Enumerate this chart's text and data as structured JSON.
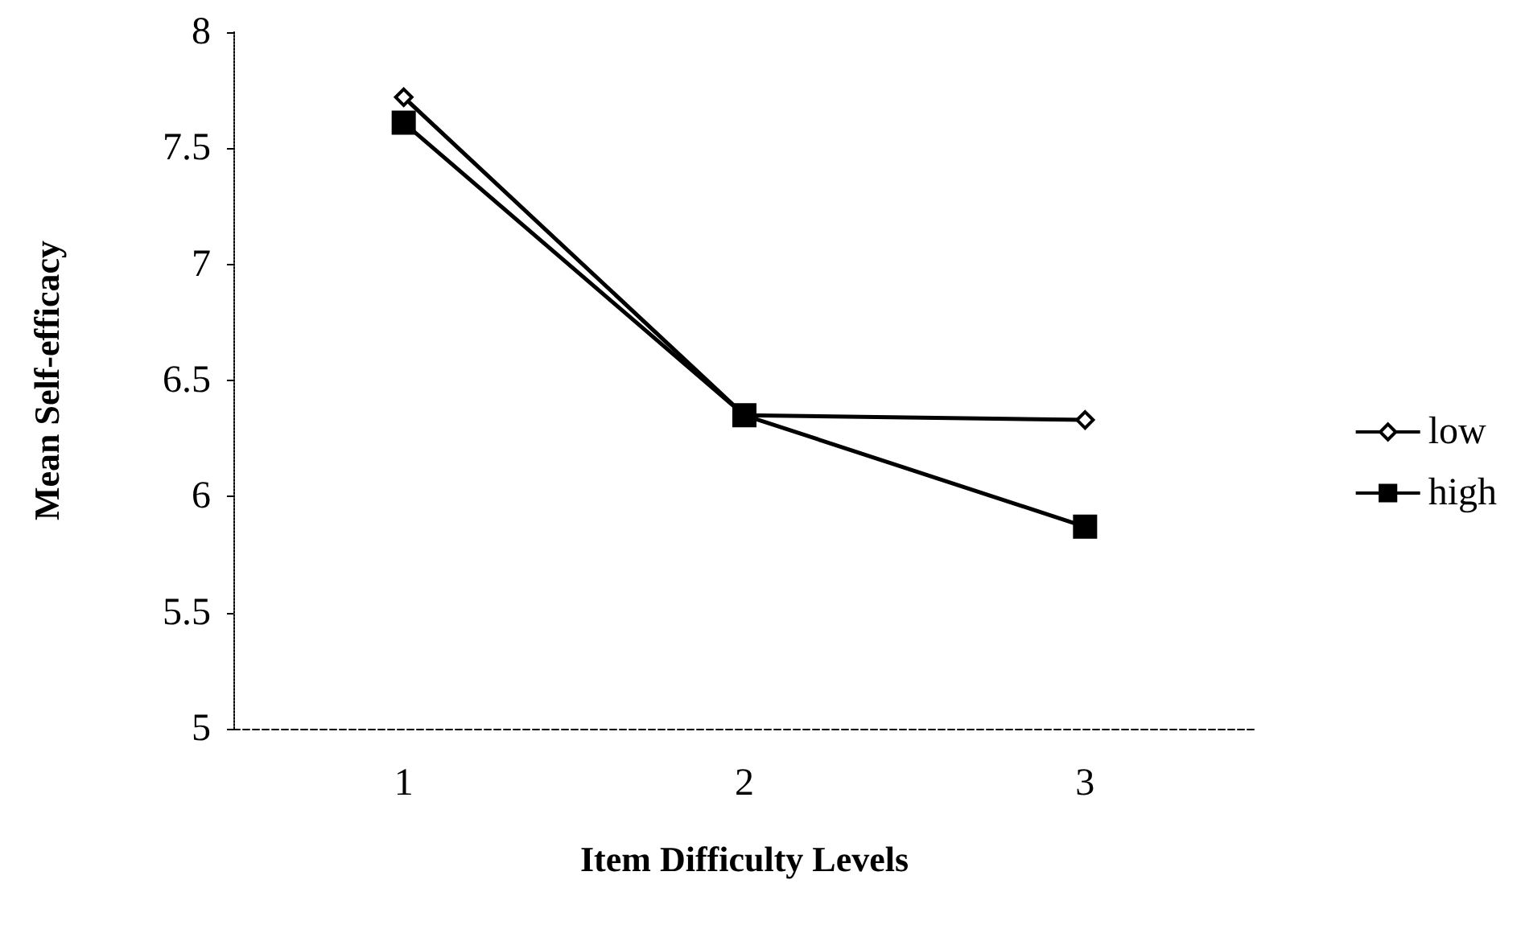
{
  "chart_data": {
    "type": "line",
    "xlabel": "Item Difficulty Levels",
    "ylabel": "Mean Self-efficacy",
    "categories": [
      "1",
      "2",
      "3"
    ],
    "series": [
      {
        "name": "low",
        "color": "#000000",
        "marker": "diamond",
        "values": [
          7.72,
          6.35,
          6.33
        ]
      },
      {
        "name": "high",
        "color": "#000000",
        "marker": "square",
        "values": [
          7.61,
          6.35,
          5.87
        ]
      }
    ],
    "ylim": [
      5,
      8
    ],
    "yticks": [
      5,
      5.5,
      6,
      6.5,
      7,
      7.5,
      8
    ],
    "grid": false,
    "legend": "right"
  }
}
